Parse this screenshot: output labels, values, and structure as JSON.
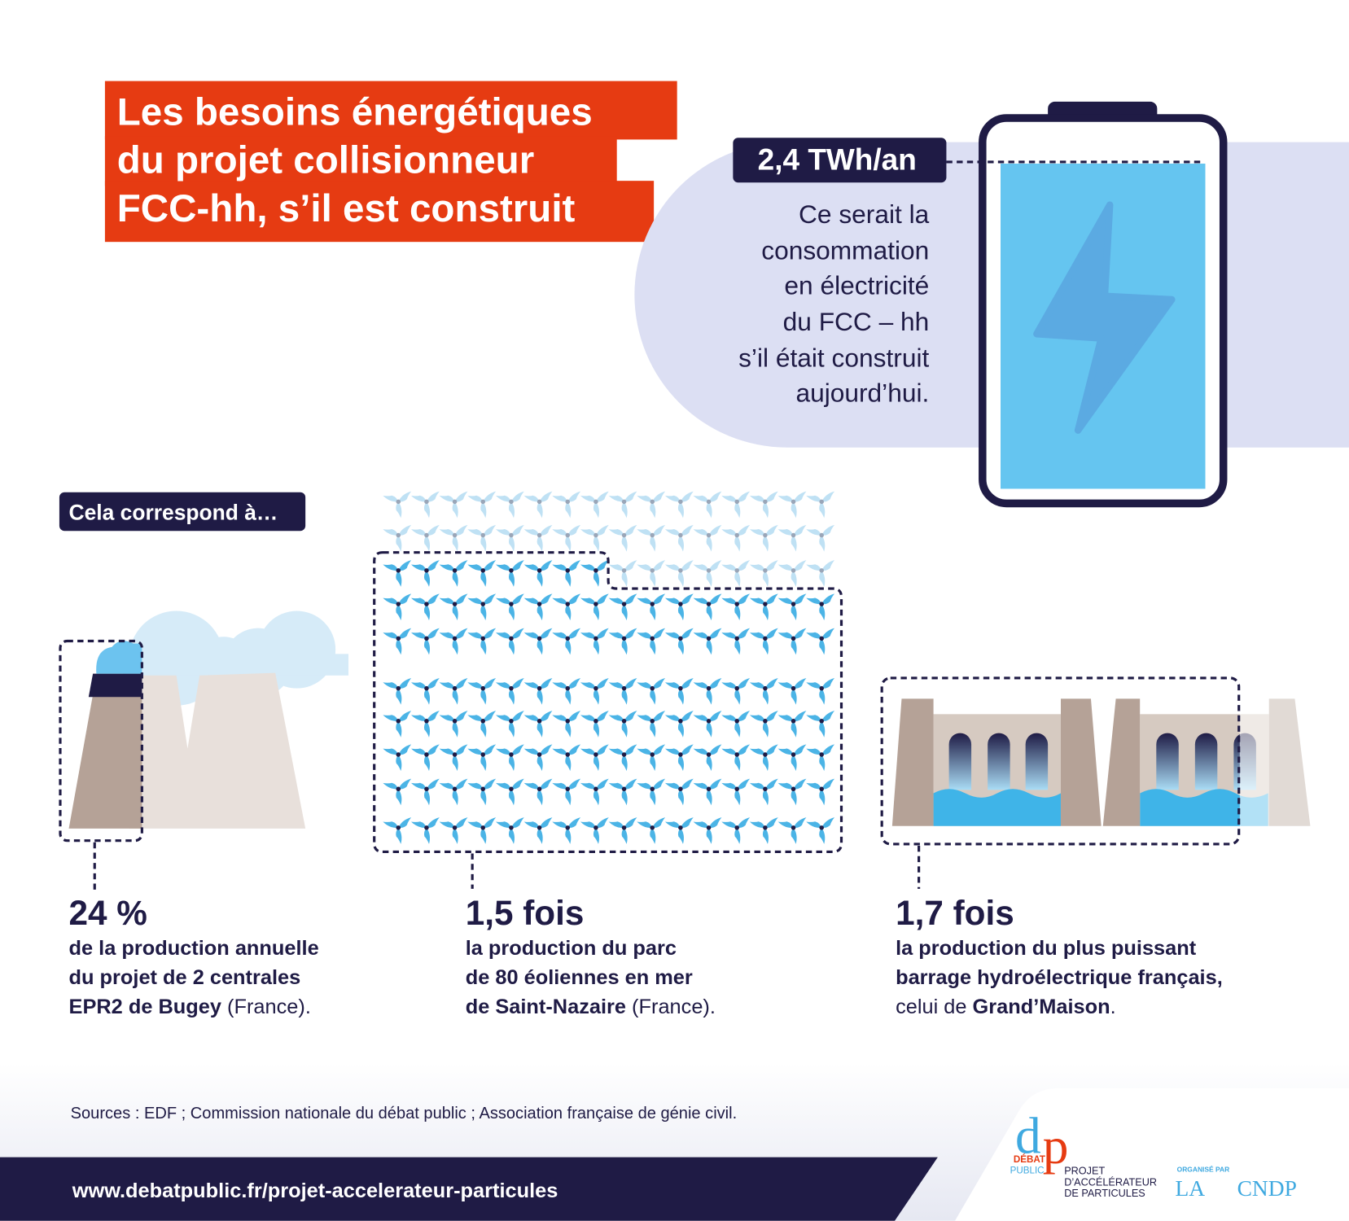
{
  "title": [
    "Les besoins énergétiques",
    "du projet collisionneur",
    "FCC-hh, s’il est construit"
  ],
  "battery": {
    "label": "2,4 TWh/an",
    "text": [
      "Ce serait la",
      "consommation",
      "en électricité",
      "du FCC – hh",
      "s’il était construit",
      "aujourd’hui."
    ]
  },
  "intro": "Cela correspond à…",
  "items": [
    {
      "figure": "24 %",
      "lines": [
        [
          {
            "text": "de la production annuelle",
            "bold": true
          }
        ],
        [
          {
            "text": "du projet de 2 centrales",
            "bold": true
          }
        ],
        [
          {
            "text": "EPR2 de Bugey",
            "bold": true
          },
          {
            "text": " (France).",
            "bold": false
          }
        ]
      ]
    },
    {
      "figure": "1,5 fois",
      "lines": [
        [
          {
            "text": "la production du parc",
            "bold": true
          }
        ],
        [
          {
            "text": "de 80 éoliennes en mer",
            "bold": true
          }
        ],
        [
          {
            "text": "de Saint-Nazaire",
            "bold": true
          },
          {
            "text": " (France).",
            "bold": false
          }
        ]
      ]
    },
    {
      "figure": "1,7 fois",
      "lines": [
        [
          {
            "text": "la production du plus puissant",
            "bold": true
          }
        ],
        [
          {
            "text": "barrage hydroélectrique français,",
            "bold": true
          }
        ],
        [
          {
            "text": "celui de ",
            "bold": false
          },
          {
            "text": "Grand’Maison",
            "bold": true
          },
          {
            "text": ".",
            "bold": false
          }
        ]
      ]
    }
  ],
  "footer": {
    "sources": "Sources : EDF ; Commission nationale du débat public ; Association française de génie civil.",
    "url": "www.debatpublic.fr/projet-accelerateur-particules",
    "logo": {
      "mark": [
        "d",
        "p"
      ],
      "name": [
        "DÉBAT",
        "PUBLIC"
      ],
      "project": [
        "PROJET",
        "D’ACCÉLÉRATEUR",
        "DE PARTICULES"
      ],
      "organised_by": "ORGANISÉ PAR",
      "organisers": [
        "LA",
        "CNDP"
      ]
    }
  }
}
